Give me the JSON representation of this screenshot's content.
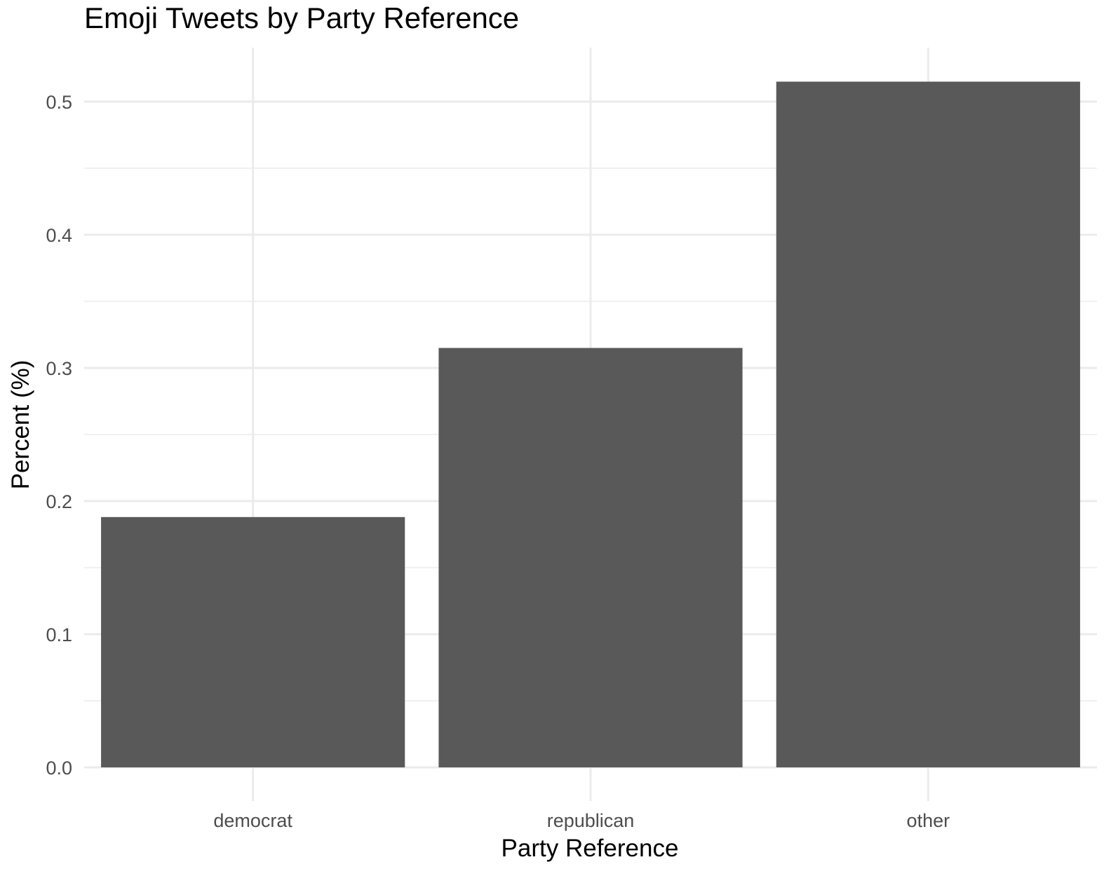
{
  "chart_data": {
    "type": "bar",
    "title": "Emoji Tweets by Party Reference",
    "xlabel": "Party Reference",
    "ylabel": "Percent (%)",
    "categories": [
      "democrat",
      "republican",
      "other"
    ],
    "values": [
      0.188,
      0.315,
      0.515
    ],
    "ylim": [
      0,
      0.525
    ],
    "yticks": [
      0.0,
      0.1,
      0.2,
      0.3,
      0.4,
      0.5
    ],
    "ytick_labels": [
      "0.0",
      "0.1",
      "0.2",
      "0.3",
      "0.4",
      "0.5"
    ],
    "grid": true,
    "legend": "none",
    "colors": {
      "bar": "#595959",
      "grid": "#ebebeb",
      "tick_text": "#4d4d4d",
      "text": "#000000"
    }
  }
}
